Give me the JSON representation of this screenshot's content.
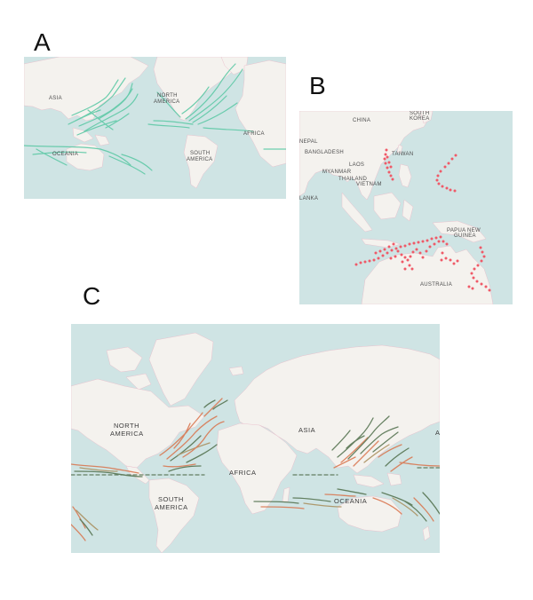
{
  "panels": {
    "a": {
      "letter": "A",
      "labels": {
        "asia": "ASIA",
        "north_america_1": "NORTH",
        "north_america_2": "AMERICA",
        "africa": "AFRICA",
        "oceania": "OCEANIA",
        "south_america_1": "SOUTH",
        "south_america_2": "AMERICA"
      }
    },
    "b": {
      "letter": "B",
      "labels": {
        "china": "CHINA",
        "south_korea_1": "SOUTH",
        "south_korea_2": "KOREA",
        "nepal": "NEPAL",
        "bangladesh": "BANGLADESH",
        "taiwan": "TAIWAN",
        "laos": "LAOS",
        "myanmar": "MYANMAR",
        "thailand": "THAILAND",
        "vietnam": "VIETNAM",
        "sri_lanka": "LANKA",
        "papua_1": "PAPUA NEW",
        "papua_2": "GUINEA",
        "australia": "AUSTRALIA"
      }
    },
    "c": {
      "letter": "C",
      "labels": {
        "north_america_1": "NORTH",
        "north_america_2": "AMERICA",
        "asia": "ASIA",
        "africa": "AFRICA",
        "south_america_1": "SOUTH",
        "south_america_2": "AMERICA",
        "oceania": "OCEANIA",
        "edge": "A"
      }
    }
  },
  "colors": {
    "ocean": "#cfe4e4",
    "land": "#f4f2ee",
    "border": "#e8b8c6",
    "track_a": "#5ec9a6",
    "track_b": "#ef5a68",
    "track_c_warm": "#d9734b",
    "track_c_dark": "#4f6e4a",
    "track_c_mid": "#a88c5a"
  }
}
